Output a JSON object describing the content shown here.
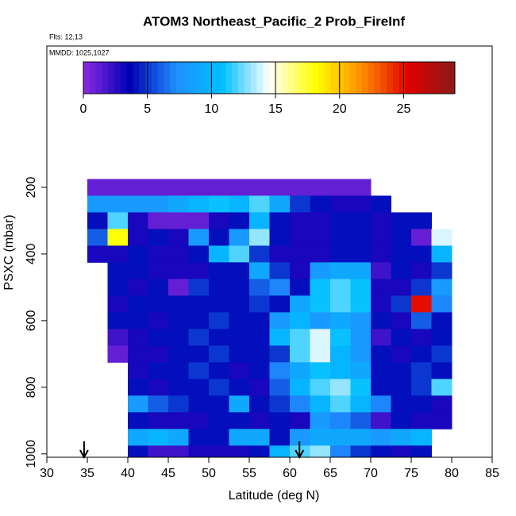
{
  "chart_data": {
    "type": "heatmap",
    "title": "ATOM3 Northeast_Pacific_2 Prob_FireInf",
    "flights": "Flts: 12,13",
    "dates": "MMDD: 1025,1027",
    "x_label": "Latitude (deg N)",
    "y_label": "PSXC (mbar)",
    "xlim": [
      30,
      85
    ],
    "xticks": [
      30,
      35,
      40,
      45,
      50,
      55,
      60,
      65,
      70,
      75,
      80,
      85
    ],
    "ylim": [
      1010,
      -224
    ],
    "yticks": [
      200,
      400,
      600,
      800,
      1000
    ],
    "x_bins": [
      35,
      37.5,
      40,
      42.5,
      45,
      47.5,
      50,
      52.5,
      55,
      57.5,
      60,
      62.5,
      65,
      67.5,
      70,
      72.5,
      75,
      77.5,
      80
    ],
    "y_bins": [
      175,
      225,
      275,
      325,
      375,
      425,
      475,
      525,
      575,
      625,
      675,
      725,
      775,
      825,
      875,
      925,
      975,
      1025
    ],
    "z": [
      [
        1,
        1,
        1,
        1,
        1,
        1,
        1,
        1,
        1,
        1,
        1,
        1,
        1,
        1,
        null,
        null,
        null,
        null
      ],
      [
        8,
        8,
        8,
        8,
        9,
        10,
        11,
        10,
        12,
        9,
        5,
        4,
        3,
        3,
        4,
        null,
        null,
        null
      ],
      [
        4,
        12,
        3,
        1,
        1,
        1,
        3,
        4,
        10,
        4,
        3,
        3,
        4,
        4,
        3,
        4,
        4,
        null
      ],
      [
        6,
        18,
        3,
        4,
        3,
        8,
        4,
        8,
        13,
        4,
        3,
        3,
        4,
        4,
        3,
        4,
        1,
        14
      ],
      [
        3,
        3,
        4,
        3,
        3,
        4,
        10,
        12,
        5,
        3,
        3,
        3,
        4,
        4,
        3,
        4,
        4,
        10
      ],
      [
        null,
        4,
        4,
        3,
        3,
        3,
        4,
        4,
        9,
        5,
        3,
        8,
        9,
        9,
        2,
        4,
        3,
        5
      ],
      [
        null,
        4,
        3,
        4,
        1,
        5,
        4,
        4,
        6,
        7,
        4,
        11,
        12,
        11,
        3,
        3,
        5,
        8
      ],
      [
        null,
        3,
        4,
        4,
        4,
        4,
        4,
        4,
        5,
        4,
        9,
        11,
        12,
        11,
        3,
        5,
        25,
        7
      ],
      [
        null,
        4,
        4,
        3,
        4,
        4,
        5,
        4,
        4,
        8,
        10,
        8,
        9,
        8,
        4,
        3,
        6,
        4
      ],
      [
        null,
        2,
        3,
        4,
        4,
        5,
        4,
        4,
        4,
        10,
        12,
        14,
        11,
        8,
        2,
        4,
        3,
        4
      ],
      [
        null,
        1,
        3,
        3,
        4,
        4,
        5,
        4,
        4,
        5,
        12,
        14,
        10,
        8,
        4,
        3,
        4,
        5
      ],
      [
        null,
        null,
        3,
        4,
        4,
        5,
        4,
        3,
        4,
        7,
        9,
        11,
        10,
        9,
        4,
        4,
        5,
        4
      ],
      [
        null,
        null,
        4,
        3,
        4,
        4,
        5,
        4,
        3,
        6,
        10,
        12,
        13,
        11,
        4,
        4,
        5,
        12
      ],
      [
        null,
        null,
        8,
        6,
        5,
        4,
        4,
        9,
        4,
        5,
        7,
        10,
        12,
        10,
        7,
        4,
        4,
        3
      ],
      [
        null,
        null,
        4,
        3,
        3,
        3,
        4,
        4,
        3,
        4,
        3,
        8,
        7,
        6,
        2,
        4,
        3,
        3
      ],
      [
        null,
        null,
        9,
        10,
        9,
        4,
        4,
        9,
        9,
        4,
        8,
        9,
        9,
        9,
        8,
        9,
        10,
        null
      ],
      [
        null,
        null,
        4,
        2,
        2,
        3,
        3,
        3,
        4,
        10,
        12,
        13,
        7,
        5,
        4,
        3,
        4,
        null
      ]
    ],
    "colorbar": {
      "lim": [
        0,
        29
      ],
      "ticks": [
        0,
        5,
        10,
        15,
        20,
        25
      ],
      "colors": [
        "#8a2be2",
        "#0000b4",
        "#1e90ff",
        "#00bfff",
        "#ffffff",
        "#ffff00",
        "#ff8c00",
        "#e00000",
        "#8b1a1a"
      ]
    },
    "arrows_lat": [
      34.6,
      61.2
    ]
  }
}
